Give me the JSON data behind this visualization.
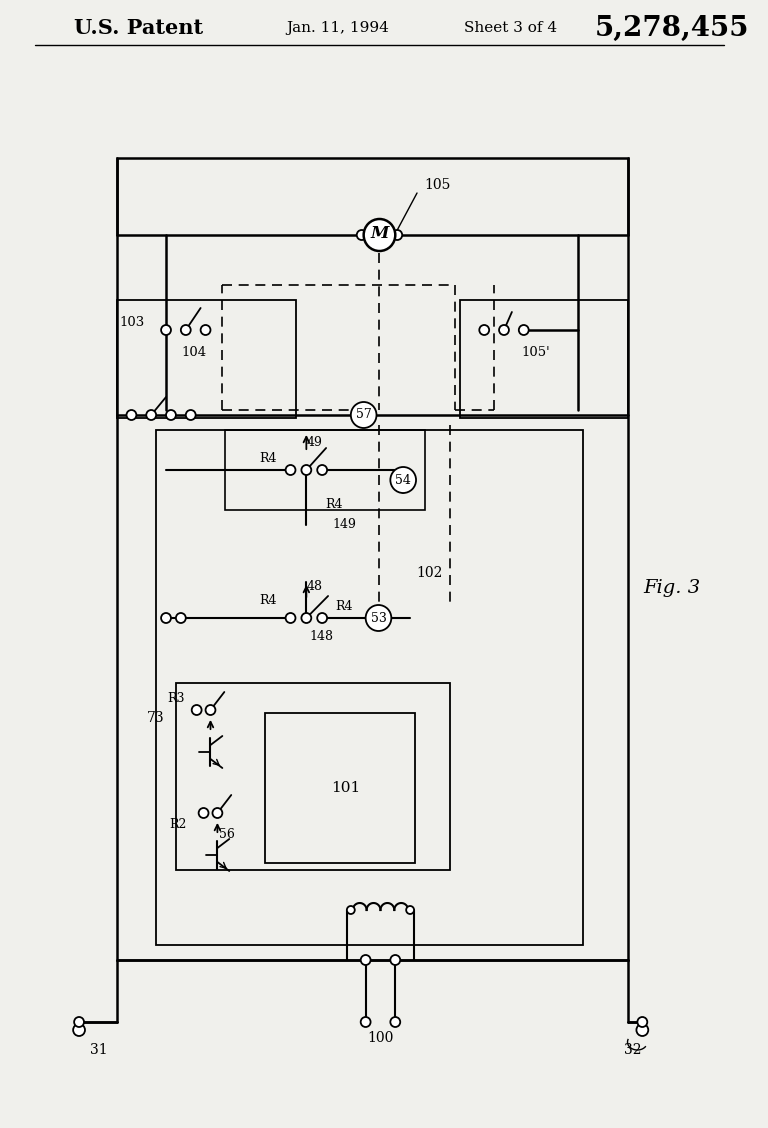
{
  "bg_color": "#f0f0ec",
  "title_left": "U.S. Patent",
  "title_mid": "Jan. 11, 1994",
  "title_sheet": "Sheet 3 of 4",
  "title_num": "5,278,455",
  "fig_label": "Fig. 3"
}
